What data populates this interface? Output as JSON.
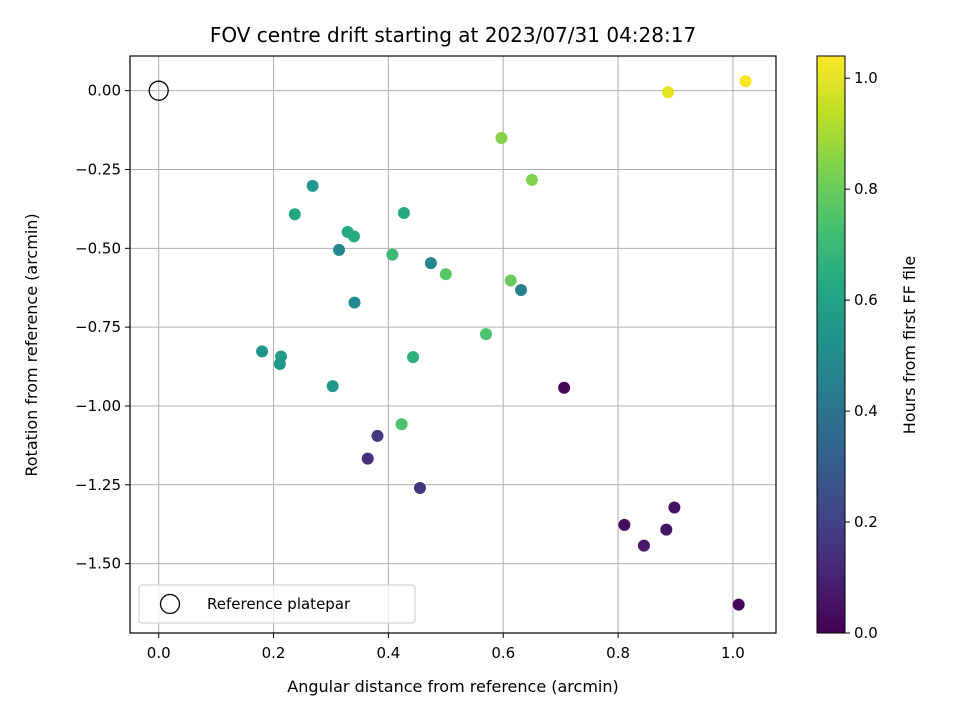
{
  "chart_data": {
    "type": "scatter",
    "title": "FOV centre drift starting at 2023/07/31 04:28:17",
    "xlabel": "Angular distance from reference (arcmin)",
    "ylabel": "Rotation from reference (arcmin)",
    "xlim": [
      -0.05,
      1.075
    ],
    "ylim": [
      -1.72,
      0.11
    ],
    "xticks": [
      0.0,
      0.2,
      0.4,
      0.6,
      0.8,
      1.0
    ],
    "xtick_labels": [
      "0.0",
      "0.2",
      "0.4",
      "0.6",
      "0.8",
      "1.0"
    ],
    "yticks": [
      0.0,
      -0.25,
      -0.5,
      -0.75,
      -1.0,
      -1.25,
      -1.5
    ],
    "ytick_labels": [
      "0.00",
      "−0.25",
      "−0.50",
      "−0.75",
      "−1.00",
      "−1.25",
      "−1.50"
    ],
    "grid": true,
    "colormap": "viridis",
    "colorbar": {
      "label": "Hours from first FF file",
      "range": [
        0.0,
        1.04
      ],
      "ticks": [
        0.0,
        0.2,
        0.4,
        0.6,
        0.8,
        1.0
      ],
      "tick_labels": [
        "0.0",
        "0.2",
        "0.4",
        "0.6",
        "0.8",
        "1.0"
      ]
    },
    "reference_point": {
      "x": 0.0,
      "y": 0.0,
      "marker": "open-circle"
    },
    "legend": {
      "position": "lower-left",
      "entries": [
        "Reference platepar"
      ]
    },
    "points": [
      {
        "x": 1.022,
        "y": 0.03,
        "hours": 1.04
      },
      {
        "x": 0.887,
        "y": -0.005,
        "hours": 1.0
      },
      {
        "x": 0.597,
        "y": -0.15,
        "hours": 0.85
      },
      {
        "x": 0.65,
        "y": -0.283,
        "hours": 0.84
      },
      {
        "x": 0.268,
        "y": -0.302,
        "hours": 0.55
      },
      {
        "x": 0.237,
        "y": -0.392,
        "hours": 0.62
      },
      {
        "x": 0.427,
        "y": -0.388,
        "hours": 0.63
      },
      {
        "x": 0.329,
        "y": -0.448,
        "hours": 0.63
      },
      {
        "x": 0.34,
        "y": -0.462,
        "hours": 0.64
      },
      {
        "x": 0.314,
        "y": -0.505,
        "hours": 0.48
      },
      {
        "x": 0.407,
        "y": -0.52,
        "hours": 0.7
      },
      {
        "x": 0.474,
        "y": -0.547,
        "hours": 0.47
      },
      {
        "x": 0.5,
        "y": -0.582,
        "hours": 0.77
      },
      {
        "x": 0.613,
        "y": -0.602,
        "hours": 0.8
      },
      {
        "x": 0.631,
        "y": -0.632,
        "hours": 0.45
      },
      {
        "x": 0.341,
        "y": -0.672,
        "hours": 0.48
      },
      {
        "x": 0.57,
        "y": -0.772,
        "hours": 0.74
      },
      {
        "x": 0.18,
        "y": -0.827,
        "hours": 0.53
      },
      {
        "x": 0.213,
        "y": -0.843,
        "hours": 0.58
      },
      {
        "x": 0.211,
        "y": -0.867,
        "hours": 0.56
      },
      {
        "x": 0.443,
        "y": -0.845,
        "hours": 0.66
      },
      {
        "x": 0.303,
        "y": -0.937,
        "hours": 0.55
      },
      {
        "x": 0.706,
        "y": -0.942,
        "hours": 0.02
      },
      {
        "x": 0.423,
        "y": -1.058,
        "hours": 0.74
      },
      {
        "x": 0.381,
        "y": -1.095,
        "hours": 0.17
      },
      {
        "x": 0.364,
        "y": -1.167,
        "hours": 0.14
      },
      {
        "x": 0.455,
        "y": -1.26,
        "hours": 0.16
      },
      {
        "x": 0.898,
        "y": -1.322,
        "hours": 0.05
      },
      {
        "x": 0.811,
        "y": -1.377,
        "hours": 0.03
      },
      {
        "x": 0.884,
        "y": -1.392,
        "hours": 0.06
      },
      {
        "x": 0.845,
        "y": -1.443,
        "hours": 0.07
      },
      {
        "x": 1.01,
        "y": -1.63,
        "hours": 0.01
      }
    ]
  }
}
